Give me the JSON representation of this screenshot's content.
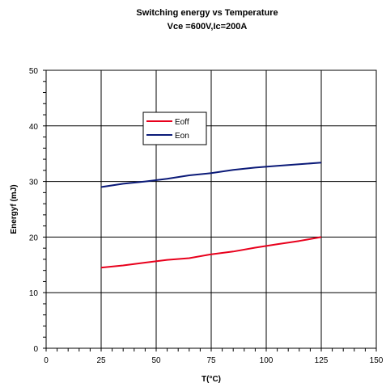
{
  "chart_data": {
    "type": "line",
    "title": "Switching energy vs Temperature",
    "subtitle": "Vce =600V,Ic=200A",
    "xlabel": "T(°C)",
    "ylabel": "Energyf (mJ)",
    "xlim": [
      0,
      150
    ],
    "ylim": [
      0,
      50
    ],
    "x_ticks": [
      "0",
      "25",
      "50",
      "75",
      "100",
      "125",
      "150"
    ],
    "y_ticks": [
      "0",
      "10",
      "20",
      "30",
      "40",
      "50"
    ],
    "grid": true,
    "legend_position": "upper-left inside plot",
    "series": [
      {
        "name": "Eoff",
        "color": "#e8001c",
        "x": [
          25,
          35,
          45,
          55,
          65,
          75,
          85,
          95,
          105,
          115,
          125
        ],
        "y": [
          14.5,
          14.9,
          15.4,
          15.9,
          16.2,
          16.9,
          17.4,
          18.1,
          18.7,
          19.3,
          20.0
        ]
      },
      {
        "name": "Eon",
        "color": "#0b1a78",
        "x": [
          25,
          35,
          45,
          55,
          65,
          75,
          85,
          95,
          105,
          115,
          125
        ],
        "y": [
          29.0,
          29.6,
          30.0,
          30.5,
          31.1,
          31.5,
          32.1,
          32.5,
          32.8,
          33.1,
          33.4
        ]
      }
    ]
  }
}
